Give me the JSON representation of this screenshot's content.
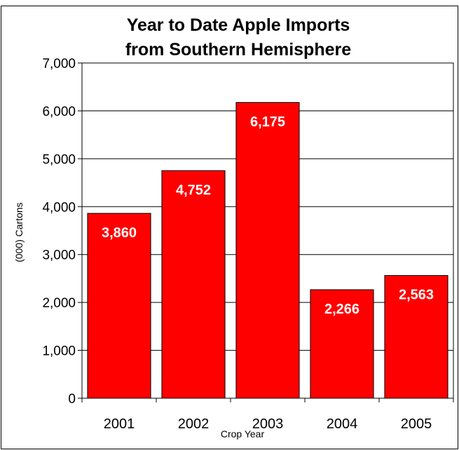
{
  "chart_data": {
    "type": "bar",
    "title_lines": [
      "Year to Date Apple Imports",
      "from Southern Hemisphere"
    ],
    "xlabel": "Crop Year",
    "ylabel": "(000) Cartons",
    "categories": [
      "2001",
      "2002",
      "2003",
      "2004",
      "2005"
    ],
    "values": [
      3860,
      4752,
      6175,
      2266,
      2563
    ],
    "value_labels": [
      "3,860",
      "4,752",
      "6,175",
      "2,266",
      "2,563"
    ],
    "ylim": [
      0,
      7000
    ],
    "yticks": [
      0,
      1000,
      2000,
      3000,
      4000,
      5000,
      6000,
      7000
    ],
    "ytick_labels": [
      "0",
      "1,000",
      "2,000",
      "3,000",
      "4,000",
      "5,000",
      "6,000",
      "7,000"
    ],
    "grid": true,
    "legend": "none",
    "bar_color": "#ff0000",
    "bar_stroke": "#000000",
    "value_label_color": "#ffffff"
  }
}
